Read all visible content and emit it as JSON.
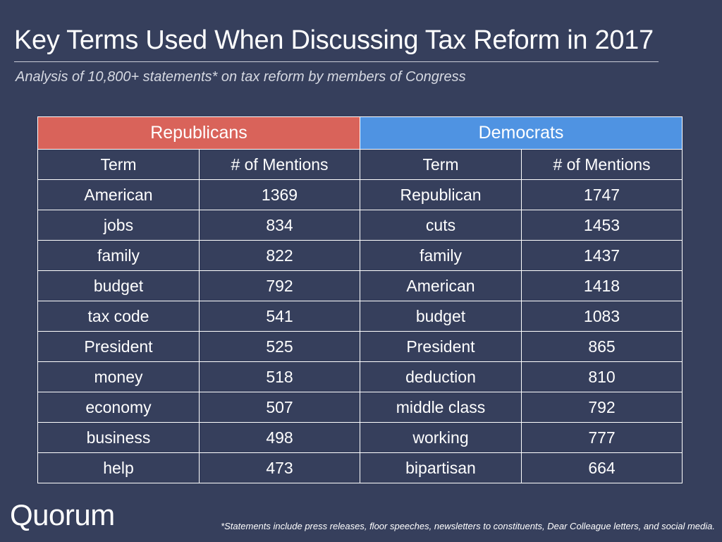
{
  "title": "Key Terms Used When Discussing Tax Reform in 2017",
  "subtitle": "Analysis of 10,800+ statements* on tax reform by members of Congress",
  "table": {
    "republicans_header": "Republicans",
    "democrats_header": "Democrats",
    "col_term": "Term",
    "col_mentions": "# of Mentions",
    "rows": [
      {
        "rep_term": "American",
        "rep_count": "1369",
        "rep_bold": false,
        "dem_term": "Republican",
        "dem_count": "1747",
        "dem_bold": false
      },
      {
        "rep_term": "jobs",
        "rep_count": "834",
        "rep_bold": true,
        "dem_term": "cuts",
        "dem_count": "1453",
        "dem_bold": true
      },
      {
        "rep_term": "family",
        "rep_count": "822",
        "rep_bold": false,
        "dem_term": "family",
        "dem_count": "1437",
        "dem_bold": false
      },
      {
        "rep_term": "budget",
        "rep_count": "792",
        "rep_bold": false,
        "dem_term": "American",
        "dem_count": "1418",
        "dem_bold": false
      },
      {
        "rep_term": "tax code",
        "rep_count": "541",
        "rep_bold": true,
        "dem_term": "budget",
        "dem_count": "1083",
        "dem_bold": false
      },
      {
        "rep_term": "President",
        "rep_count": "525",
        "rep_bold": false,
        "dem_term": "President",
        "dem_count": "865",
        "dem_bold": false
      },
      {
        "rep_term": "money",
        "rep_count": "518",
        "rep_bold": true,
        "dem_term": "deduction",
        "dem_count": "810",
        "dem_bold": true
      },
      {
        "rep_term": "economy",
        "rep_count": "507",
        "rep_bold": true,
        "dem_term": "middle class",
        "dem_count": "792",
        "dem_bold": true
      },
      {
        "rep_term": "business",
        "rep_count": "498",
        "rep_bold": false,
        "dem_term": "working",
        "dem_count": "777",
        "dem_bold": false
      },
      {
        "rep_term": "help",
        "rep_count": "473",
        "rep_bold": false,
        "dem_term": "bipartisan",
        "dem_count": "664",
        "dem_bold": true
      }
    ]
  },
  "colors": {
    "background": "#363f5c",
    "republicans": "#d9635a",
    "democrats": "#4f93e2"
  },
  "logo": "Quorum",
  "footnote": "*Statements include press releases, floor speeches, newsletters to constituents, Dear Colleague letters, and social media."
}
